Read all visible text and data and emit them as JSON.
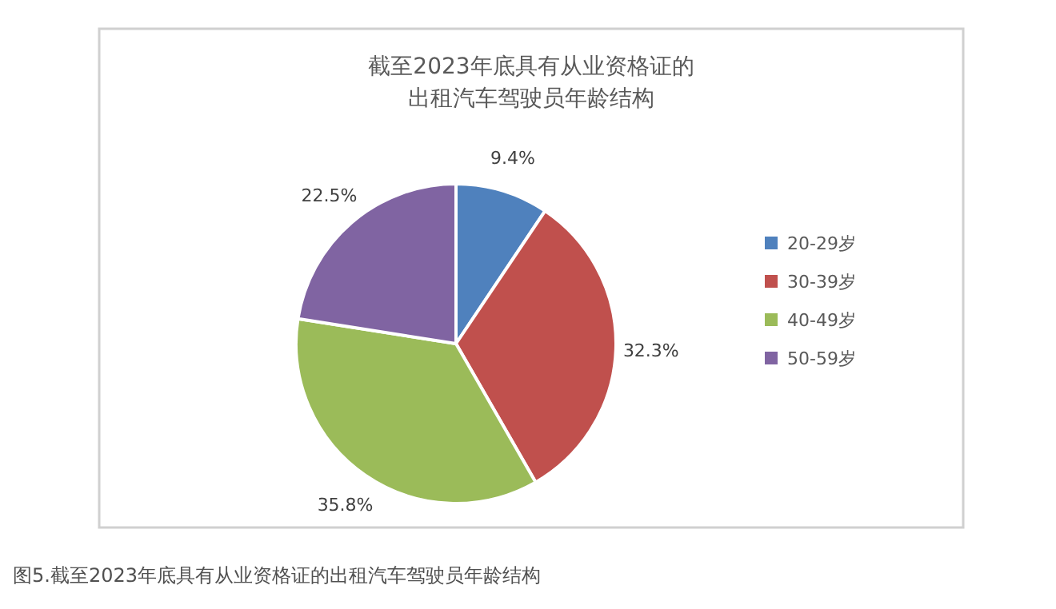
{
  "chart_data": {
    "type": "pie",
    "title": "截至2023年底具有从业资格证的出租汽车驾驶员年龄结构",
    "categories": [
      "20-29岁",
      "30-39岁",
      "40-49岁",
      "50-59岁"
    ],
    "values": [
      9.4,
      32.3,
      35.8,
      22.5
    ],
    "colors": [
      "#4f81bd",
      "#c0504d",
      "#9bbb59",
      "#8064a2"
    ],
    "value_labels": [
      "9.4%",
      "32.3%",
      "35.8%",
      "22.5%"
    ],
    "legend": "right",
    "annotations": [
      "图5.截至2023年底具有从业资格证的出租汽车驾驶员年龄结构"
    ]
  }
}
